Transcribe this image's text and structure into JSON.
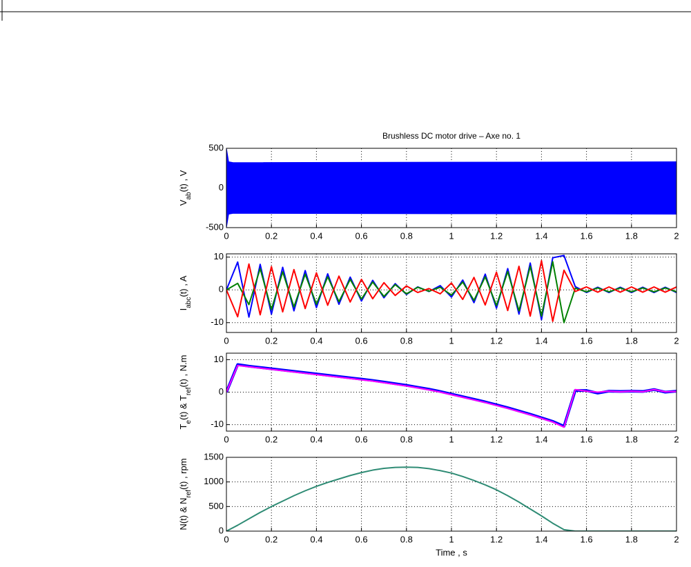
{
  "chart_data": [
    {
      "type": "band",
      "title": "Brushless DC motor drive – Axe no. 1",
      "ylabel": [
        "V",
        "ab",
        "(t) , V"
      ],
      "x": [
        0,
        0.01,
        0.03,
        2
      ],
      "series": [
        {
          "color": "#0000ff",
          "values": [
            500,
            330,
            320,
            330
          ]
        },
        {
          "color": "#0000ff",
          "values": [
            -500,
            -330,
            -320,
            -330
          ]
        }
      ],
      "xlim": [
        0,
        2
      ],
      "xticks": [
        0,
        0.2,
        0.4,
        0.6,
        0.8,
        1,
        1.2,
        1.4,
        1.6,
        1.8,
        2
      ],
      "ylim": [
        -500,
        500
      ],
      "yticks": [
        -500,
        0,
        500
      ],
      "grid": true
    },
    {
      "type": "line",
      "ylabel": [
        "I",
        "abc",
        "(t) , A"
      ],
      "x": [
        0,
        0.05,
        0.1,
        0.15,
        0.2,
        0.25,
        0.3,
        0.35,
        0.4,
        0.45,
        0.5,
        0.55,
        0.6,
        0.65,
        0.7,
        0.75,
        0.8,
        0.85,
        0.9,
        0.95,
        1,
        1.05,
        1.1,
        1.15,
        1.2,
        1.25,
        1.3,
        1.35,
        1.4,
        1.45,
        1.5,
        1.55,
        1.6,
        1.65,
        1.7,
        1.75,
        1.8,
        1.85,
        1.9,
        1.95,
        2
      ],
      "series": [
        {
          "color": "#0000ff",
          "values": [
            0,
            8.5,
            -8.3,
            7.8,
            -7.4,
            6.9,
            -6.4,
            5.9,
            -5.4,
            4.9,
            -4.4,
            3.9,
            -3.4,
            2.9,
            -2.4,
            1.9,
            -1.4,
            0.9,
            -0.5,
            1.3,
            -2.2,
            3.0,
            -3.9,
            4.8,
            -5.6,
            6.5,
            -7.4,
            8.2,
            -9.1,
            9.8,
            10.5,
            1,
            -0.8,
            0.8,
            -0.8,
            0.8,
            -0.8,
            0.8,
            -0.8,
            0.8,
            -0.8
          ]
        },
        {
          "color": "#008000",
          "values": [
            0,
            2,
            -4.5,
            6.5,
            -6,
            5.5,
            -5.2,
            4.8,
            -4.4,
            4,
            -3.6,
            3.2,
            -2.8,
            2.4,
            -2,
            1.6,
            -1.2,
            0.8,
            -0.4,
            0.8,
            -1.6,
            2.4,
            -3.2,
            4,
            -4.8,
            5.6,
            -6.4,
            7.2,
            -8,
            8.6,
            -10,
            0.5,
            -0.6,
            0.6,
            -0.6,
            0.6,
            -0.6,
            0.6,
            -0.6,
            0.6,
            -0.6
          ]
        },
        {
          "color": "#ff0000",
          "values": [
            0,
            -8.2,
            7.9,
            -7.6,
            7.1,
            -6.7,
            6.2,
            -5.7,
            5.2,
            -4.7,
            4.2,
            -3.7,
            3.2,
            -2.7,
            2.2,
            -1.7,
            1.2,
            -0.8,
            0.4,
            -1.2,
            2.1,
            -2.9,
            3.8,
            -4.6,
            5.4,
            -6.3,
            7.2,
            -8.0,
            8.9,
            -9.6,
            6,
            -0.5,
            0.9,
            -0.7,
            0.9,
            -0.7,
            0.9,
            -0.7,
            0.9,
            -0.7,
            0.9
          ]
        }
      ],
      "xlim": [
        0,
        2
      ],
      "xticks": [
        0,
        0.2,
        0.4,
        0.6,
        0.8,
        1,
        1.2,
        1.4,
        1.6,
        1.8,
        2
      ],
      "ylim": [
        -13,
        11
      ],
      "yticks": [
        -10,
        0,
        10
      ],
      "grid": true
    },
    {
      "type": "line",
      "ylabel": [
        "T",
        "e",
        "(t) & T",
        "ref",
        "(t) , N.m"
      ],
      "x": [
        0,
        0.05,
        0.1,
        0.15,
        0.2,
        0.25,
        0.3,
        0.35,
        0.4,
        0.45,
        0.5,
        0.55,
        0.6,
        0.65,
        0.7,
        0.75,
        0.8,
        0.85,
        0.9,
        0.95,
        1,
        1.05,
        1.1,
        1.15,
        1.2,
        1.25,
        1.3,
        1.35,
        1.4,
        1.45,
        1.5,
        1.55,
        1.6,
        1.65,
        1.7,
        1.75,
        1.8,
        1.85,
        1.9,
        1.95,
        2
      ],
      "series": [
        {
          "color": "#0000ff",
          "values": [
            0,
            8.5,
            8,
            7.6,
            7.2,
            6.8,
            6.4,
            6,
            5.6,
            5.2,
            4.8,
            4.4,
            4,
            3.6,
            3.1,
            2.6,
            2.1,
            1.5,
            0.9,
            0.2,
            -0.6,
            -1.4,
            -2.2,
            -3,
            -3.9,
            -4.8,
            -5.8,
            -6.8,
            -7.9,
            -9,
            -10.5,
            0.5,
            0.5,
            -0.3,
            0.3,
            0.2,
            0.3,
            0.2,
            0.8,
            0,
            0.3
          ]
        },
        {
          "color": "#ff00ff",
          "values": [
            0,
            8.2,
            7.8,
            7.4,
            7,
            6.6,
            6.2,
            5.8,
            5.4,
            5,
            4.6,
            4.2,
            3.8,
            3.4,
            2.9,
            2.4,
            1.9,
            1.3,
            0.7,
            0,
            -0.8,
            -1.6,
            -2.4,
            -3.2,
            -4.1,
            -5,
            -6,
            -7,
            -8.1,
            -9.2,
            -10.8,
            0.8,
            0.3,
            0,
            0.3,
            0.1,
            0.3,
            0.1,
            0.8,
            0.1,
            0.2
          ]
        }
      ],
      "xlim": [
        0,
        2
      ],
      "xticks": [
        0,
        0.2,
        0.4,
        0.6,
        0.8,
        1,
        1.2,
        1.4,
        1.6,
        1.8,
        2
      ],
      "ylim": [
        -12,
        12
      ],
      "yticks": [
        -10,
        0,
        10
      ],
      "grid": true
    },
    {
      "type": "line",
      "ylabel": [
        "N(t) & N",
        "ref",
        "(t) , rpm"
      ],
      "xlabel": "Time , s",
      "x": [
        0,
        0.05,
        0.1,
        0.15,
        0.2,
        0.25,
        0.3,
        0.35,
        0.4,
        0.45,
        0.5,
        0.55,
        0.6,
        0.65,
        0.7,
        0.75,
        0.8,
        0.85,
        0.9,
        0.95,
        1,
        1.05,
        1.1,
        1.15,
        1.2,
        1.25,
        1.3,
        1.35,
        1.4,
        1.45,
        1.5,
        1.55,
        1.6,
        1.65,
        1.7,
        1.75,
        1.8,
        1.85,
        1.9,
        1.95,
        2
      ],
      "series": [
        {
          "color": "#2e8b74",
          "values": [
            0,
            120,
            250,
            380,
            500,
            610,
            720,
            820,
            910,
            990,
            1060,
            1130,
            1190,
            1240,
            1275,
            1295,
            1300,
            1295,
            1270,
            1230,
            1180,
            1110,
            1030,
            940,
            840,
            720,
            590,
            450,
            310,
            160,
            30,
            0,
            0,
            0,
            0,
            0,
            0,
            0,
            0,
            0,
            0
          ]
        }
      ],
      "xlim": [
        0,
        2
      ],
      "xticks": [
        0,
        0.2,
        0.4,
        0.6,
        0.8,
        1,
        1.2,
        1.4,
        1.6,
        1.8,
        2
      ],
      "ylim": [
        0,
        1500
      ],
      "yticks": [
        0,
        500,
        1000,
        1500
      ],
      "grid": true
    }
  ]
}
